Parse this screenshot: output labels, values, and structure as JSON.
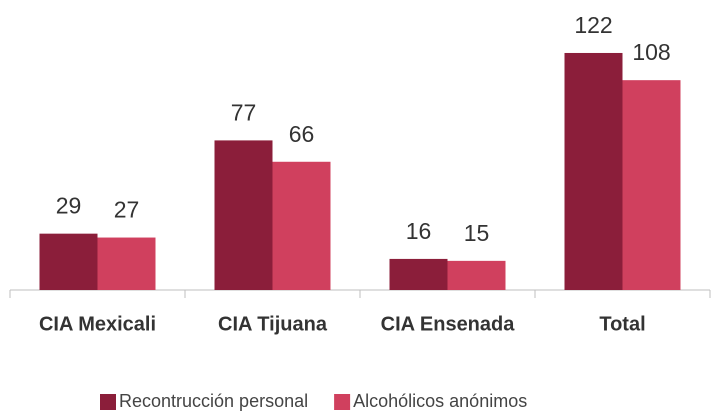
{
  "chart_data": {
    "type": "bar",
    "categories": [
      "CIA Mexicali",
      "CIA Tijuana",
      "CIA Ensenada",
      "Total"
    ],
    "series": [
      {
        "name": "Recontrucción personal",
        "color": "#8b1e3a",
        "values": [
          29,
          77,
          16,
          122
        ]
      },
      {
        "name": "Alcohólicos anónimos",
        "color": "#d0405e",
        "values": [
          27,
          66,
          15,
          108
        ]
      }
    ],
    "ylim": [
      0,
      140
    ],
    "legend": "bottom"
  }
}
